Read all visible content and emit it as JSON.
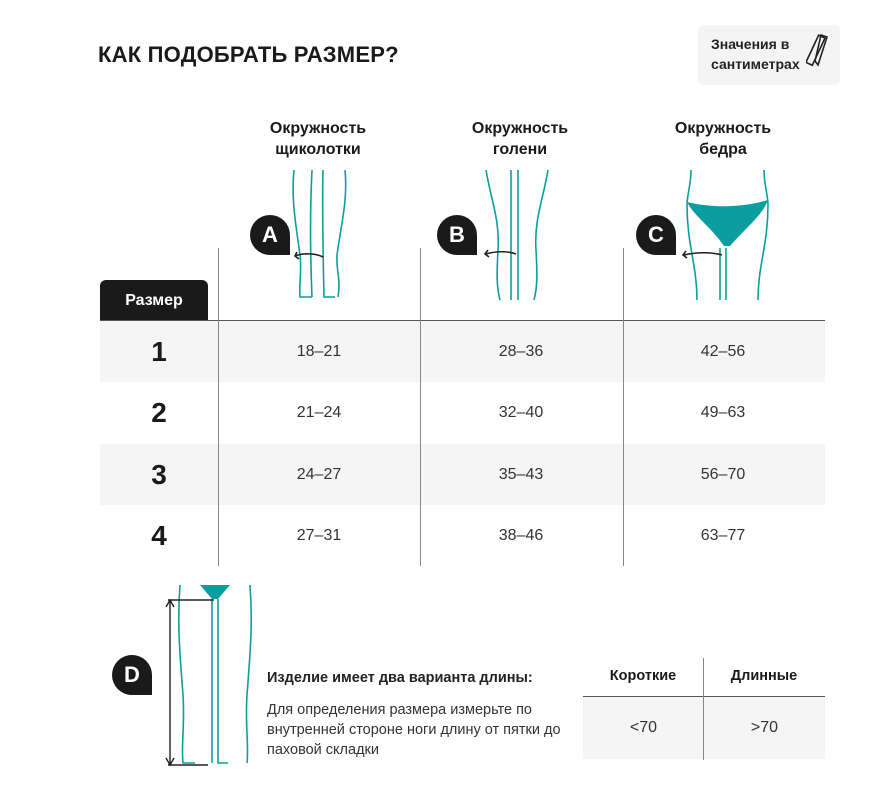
{
  "title": "КАК ПОДОБРАТЬ РАЗМЕР?",
  "units_badge": {
    "line1": "Значения в",
    "line2": "сантиметрах",
    "icon": "ruler-pencil-icon"
  },
  "columns": [
    {
      "badge": "A",
      "line1": "Окружность",
      "line2": "щиколотки"
    },
    {
      "badge": "B",
      "line1": "Окружность",
      "line2": "голени"
    },
    {
      "badge": "C",
      "line1": "Окружность",
      "line2": "бедра"
    }
  ],
  "size_label": "Размер",
  "rows": [
    {
      "size": "1",
      "values": [
        "18–21",
        "28–36",
        "42–56"
      ]
    },
    {
      "size": "2",
      "values": [
        "21–24",
        "32–40",
        "49–63"
      ]
    },
    {
      "size": "3",
      "values": [
        "24–27",
        "35–43",
        "56–70"
      ]
    },
    {
      "size": "4",
      "values": [
        "27–31",
        "38–46",
        "63–77"
      ]
    }
  ],
  "length": {
    "badge": "D",
    "title": "Изделие имеет два варианта длины:",
    "description": "Для определения размера измерьте по внутренней стороне ноги длину от пятки до паховой складки",
    "headers": [
      "Короткие",
      "Длинные"
    ],
    "values": [
      "<70",
      ">70"
    ]
  },
  "colors": {
    "accent": "#0b9ea0",
    "dark": "#1a1a1a",
    "row_alt": "#f5f5f5"
  }
}
